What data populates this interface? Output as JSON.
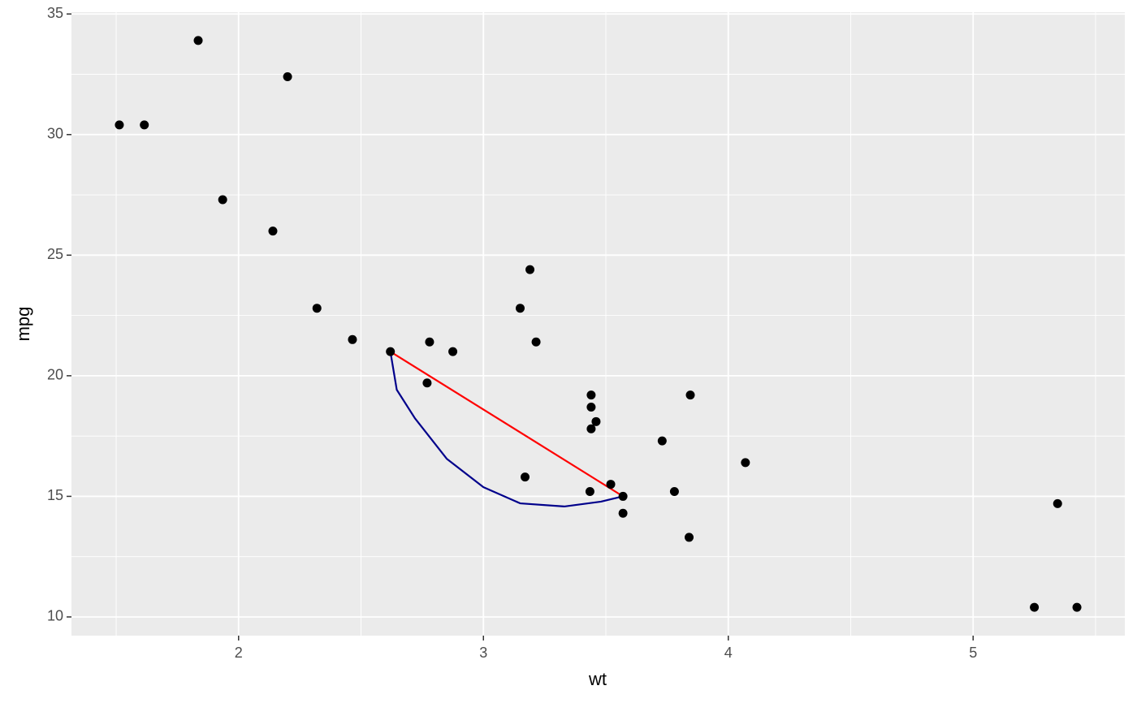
{
  "chart_data": {
    "type": "scatter",
    "x_label": "wt",
    "y_label": "mpg",
    "xlim": [
      1.31745,
      5.61955
    ],
    "ylim": [
      9.225,
      35.075
    ],
    "xticks": [
      2,
      3,
      4,
      5
    ],
    "yticks": [
      10,
      15,
      20,
      25,
      30,
      35
    ],
    "x_minor_grid": [
      1.5,
      2.5,
      3.5,
      4.5,
      5.5
    ],
    "y_minor_grid": [
      12.5,
      17.5,
      22.5,
      27.5,
      32.5
    ],
    "grid": true,
    "series": [
      {
        "geom": "point",
        "color": "#000000",
        "x": [
          2.62,
          2.875,
          2.32,
          3.215,
          3.44,
          3.46,
          3.57,
          3.19,
          3.15,
          3.44,
          3.44,
          4.07,
          3.73,
          3.78,
          5.25,
          5.424,
          5.345,
          2.2,
          1.615,
          1.835,
          2.465,
          3.52,
          3.435,
          3.84,
          3.845,
          1.935,
          2.14,
          1.513,
          3.17,
          2.77,
          3.57,
          2.78
        ],
        "values": [
          21.0,
          21.0,
          22.8,
          21.4,
          18.7,
          18.1,
          14.3,
          24.4,
          22.8,
          19.2,
          17.8,
          16.4,
          17.3,
          15.2,
          10.4,
          10.4,
          14.7,
          32.4,
          30.4,
          33.9,
          21.5,
          15.5,
          15.2,
          13.3,
          19.2,
          27.3,
          26.0,
          30.4,
          15.8,
          19.7,
          15.0,
          21.4
        ]
      },
      {
        "geom": "line",
        "color": "#ff0000",
        "x": [
          2.62,
          3.57
        ],
        "values": [
          21.0,
          15.0
        ]
      },
      {
        "geom": "line",
        "color": "#00008b",
        "x": [
          2.62,
          2.646,
          2.72,
          2.85,
          3.0,
          3.15,
          3.33,
          3.48,
          3.57
        ],
        "values": [
          21.0,
          19.42,
          18.24,
          16.56,
          15.38,
          14.71,
          14.58,
          14.78,
          15.0
        ]
      }
    ]
  }
}
